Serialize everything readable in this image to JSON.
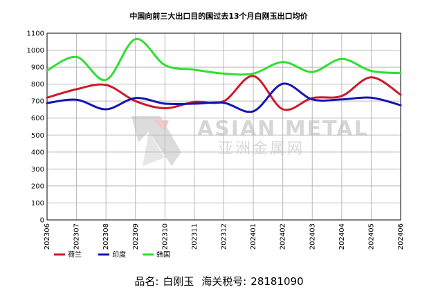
{
  "chart_data": {
    "type": "line",
    "title": "中国向前三大出口目的国过去13个月白刚玉出口均价",
    "categories": [
      "202306",
      "202307",
      "202308",
      "202309",
      "202310",
      "202311",
      "202312",
      "202401",
      "202402",
      "202403",
      "202404",
      "202405",
      "202406"
    ],
    "ylim": [
      0,
      1100
    ],
    "yticks": [
      0,
      100,
      200,
      300,
      400,
      500,
      600,
      700,
      800,
      900,
      1000,
      1100
    ],
    "grid": true,
    "legend_position": "bottom-left",
    "series": [
      {
        "name": "荷兰",
        "color": "#cc1a2a",
        "values": [
          720,
          770,
          795,
          700,
          658,
          695,
          700,
          848,
          652,
          718,
          730,
          840,
          738
        ]
      },
      {
        "name": "印度",
        "color": "#1414b4",
        "values": [
          688,
          708,
          652,
          718,
          685,
          685,
          690,
          640,
          802,
          710,
          710,
          720,
          676
        ]
      },
      {
        "name": "韩国",
        "color": "#2ee02e",
        "values": [
          880,
          960,
          825,
          1065,
          912,
          885,
          862,
          862,
          930,
          872,
          948,
          878,
          865
        ]
      }
    ]
  },
  "watermark": {
    "en": "ASIAN METAL",
    "cn": "亚洲金属网"
  },
  "footer": {
    "name_label": "品名:",
    "name_value": "白刚玉",
    "code_label": "海关税号:",
    "code_value": "28181090"
  }
}
